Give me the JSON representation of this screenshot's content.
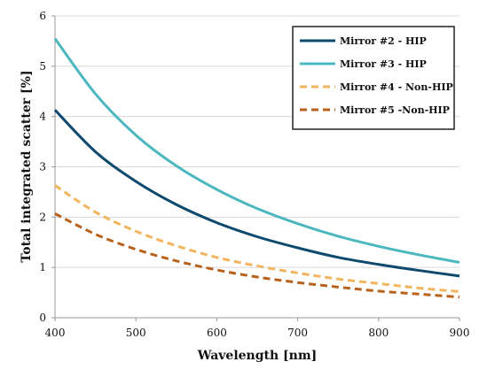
{
  "chart_data": {
    "type": "line",
    "title": "",
    "xlabel": "Wavelength [nm]",
    "ylabel": "Total integrated scatter [%]",
    "xlim": [
      400,
      900
    ],
    "ylim": [
      0,
      6
    ],
    "xticks": [
      400,
      500,
      600,
      700,
      800,
      900
    ],
    "yticks": [
      0,
      1,
      2,
      3,
      4,
      5,
      6
    ],
    "grid": "horizontal",
    "legend_position": "top-right",
    "x": [
      400,
      450,
      500,
      550,
      600,
      650,
      700,
      750,
      800,
      850,
      900
    ],
    "series": [
      {
        "name": "Mirror #2 - HIP",
        "color": "#0e4a6e",
        "dash": "solid",
        "values": [
          4.13,
          3.3,
          2.71,
          2.25,
          1.89,
          1.61,
          1.39,
          1.2,
          1.06,
          0.94,
          0.83
        ]
      },
      {
        "name": "Mirror #3 - HIP",
        "color": "#4bb8c0",
        "dash": "solid",
        "values": [
          5.55,
          4.45,
          3.63,
          3.02,
          2.55,
          2.17,
          1.87,
          1.62,
          1.42,
          1.25,
          1.1
        ]
      },
      {
        "name": "Mirror #4 - Non-HIP",
        "color": "#f2b45c",
        "dash": "dashed",
        "values": [
          2.63,
          2.1,
          1.72,
          1.43,
          1.2,
          1.03,
          0.89,
          0.77,
          0.68,
          0.59,
          0.52
        ]
      },
      {
        "name": "Mirror #5 -Non-HIP",
        "color": "#b8621c",
        "dash": "dashed",
        "values": [
          2.07,
          1.66,
          1.36,
          1.13,
          0.95,
          0.81,
          0.7,
          0.61,
          0.53,
          0.47,
          0.41
        ]
      }
    ]
  }
}
